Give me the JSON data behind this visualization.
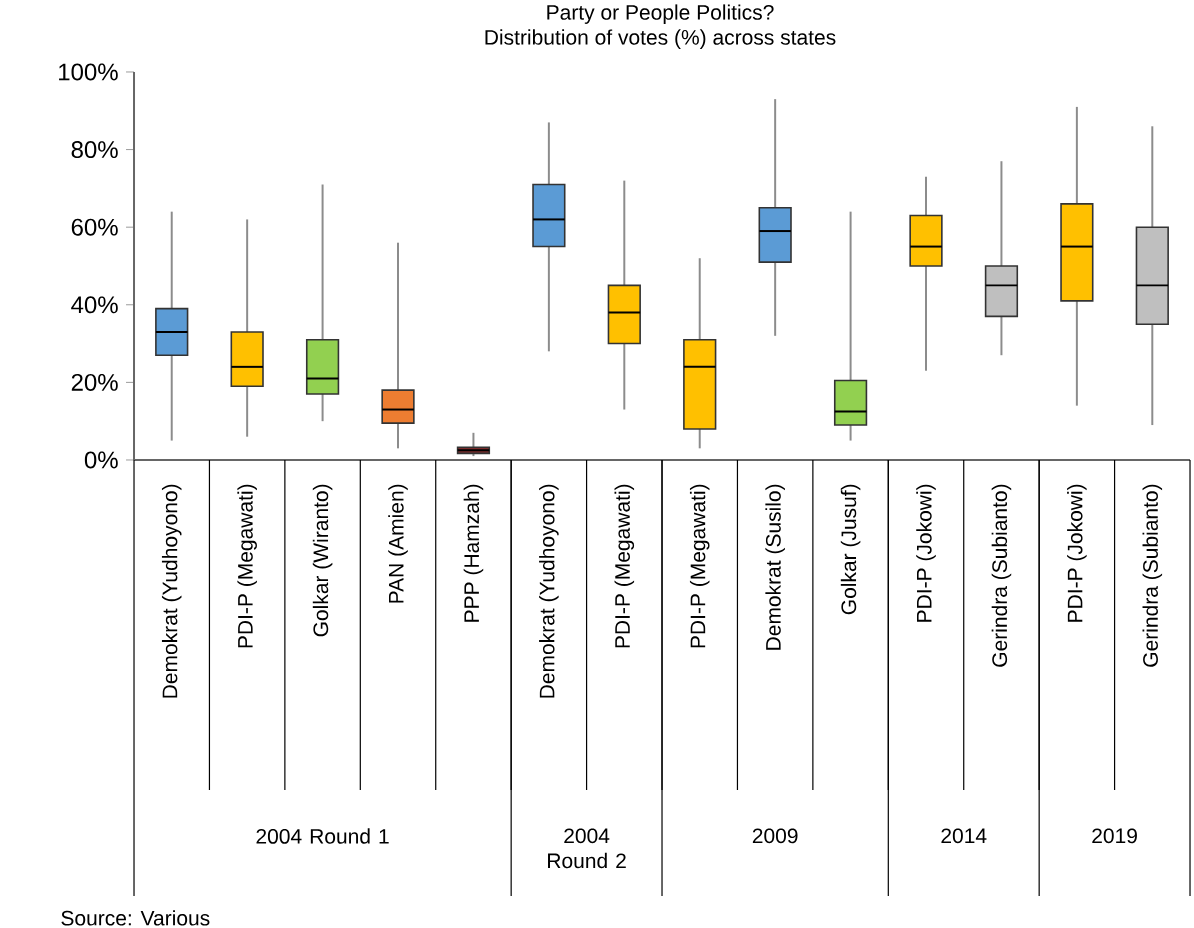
{
  "chart_data": {
    "type": "box",
    "title": "Party or People Politics?",
    "subtitle": "Distribution of votes (%) across states",
    "categories": [
      "Demokrat (Yudhoyono)",
      "PDI-P (Megawati)",
      "Golkar (Wiranto)",
      "PAN (Amien)",
      "PPP (Hamzah)",
      "Demokrat (Yudhoyono)",
      "PDI-P (Megawati)",
      "PDI-P (Megawati)",
      "Demokrat (Susilo)",
      "Golkar (Jusuf)",
      "PDI-P (Jokowi)",
      "Gerindra (Subianto)",
      "PDI-P (Jokowi)",
      "Gerindra (Subianto)"
    ],
    "boxes": [
      {
        "low": 5,
        "q1": 27,
        "median": 33,
        "q3": 39,
        "high": 64
      },
      {
        "low": 6,
        "q1": 19,
        "median": 24,
        "q3": 33,
        "high": 62
      },
      {
        "low": 10,
        "q1": 17,
        "median": 21,
        "q3": 31,
        "high": 71
      },
      {
        "low": 3,
        "q1": 9.5,
        "median": 13,
        "q3": 18,
        "high": 56
      },
      {
        "low": 1,
        "q1": 1.7,
        "median": 2.5,
        "q3": 3.3,
        "high": 7
      },
      {
        "low": 28,
        "q1": 55,
        "median": 62,
        "q3": 71,
        "high": 87
      },
      {
        "low": 13,
        "q1": 30,
        "median": 38,
        "q3": 45,
        "high": 72
      },
      {
        "low": 3,
        "q1": 8,
        "median": 24,
        "q3": 31,
        "high": 52
      },
      {
        "low": 32,
        "q1": 51,
        "median": 59,
        "q3": 65,
        "high": 93
      },
      {
        "low": 5,
        "q1": 9,
        "median": 12.5,
        "q3": 20.5,
        "high": 64
      },
      {
        "low": 23,
        "q1": 50,
        "median": 55,
        "q3": 63,
        "high": 73
      },
      {
        "low": 27,
        "q1": 37,
        "median": 45,
        "q3": 50,
        "high": 77
      },
      {
        "low": 14,
        "q1": 41,
        "median": 55,
        "q3": 66,
        "high": 91
      },
      {
        "low": 9,
        "q1": 35,
        "median": 45,
        "q3": 60,
        "high": 86
      }
    ],
    "colors": [
      "#5b9bd5",
      "#ffc000",
      "#92d050",
      "#ed7d31",
      "#7b2c2c",
      "#5b9bd5",
      "#ffc000",
      "#ffc000",
      "#5b9bd5",
      "#92d050",
      "#ffc000",
      "#bfbfbf",
      "#ffc000",
      "#bfbfbf"
    ],
    "ylim": [
      0,
      100
    ],
    "yticks": [
      {
        "value": 0,
        "label": "0%"
      },
      {
        "value": 20,
        "label": "20%"
      },
      {
        "value": 40,
        "label": "40%"
      },
      {
        "value": 60,
        "label": "60%"
      },
      {
        "value": 80,
        "label": "80%"
      },
      {
        "value": 100,
        "label": "100%"
      }
    ],
    "annotations": [
      "2004 Round 1",
      "2004 Round 2",
      "2009",
      "2014",
      "2019",
      "Source: Various"
    ]
  }
}
